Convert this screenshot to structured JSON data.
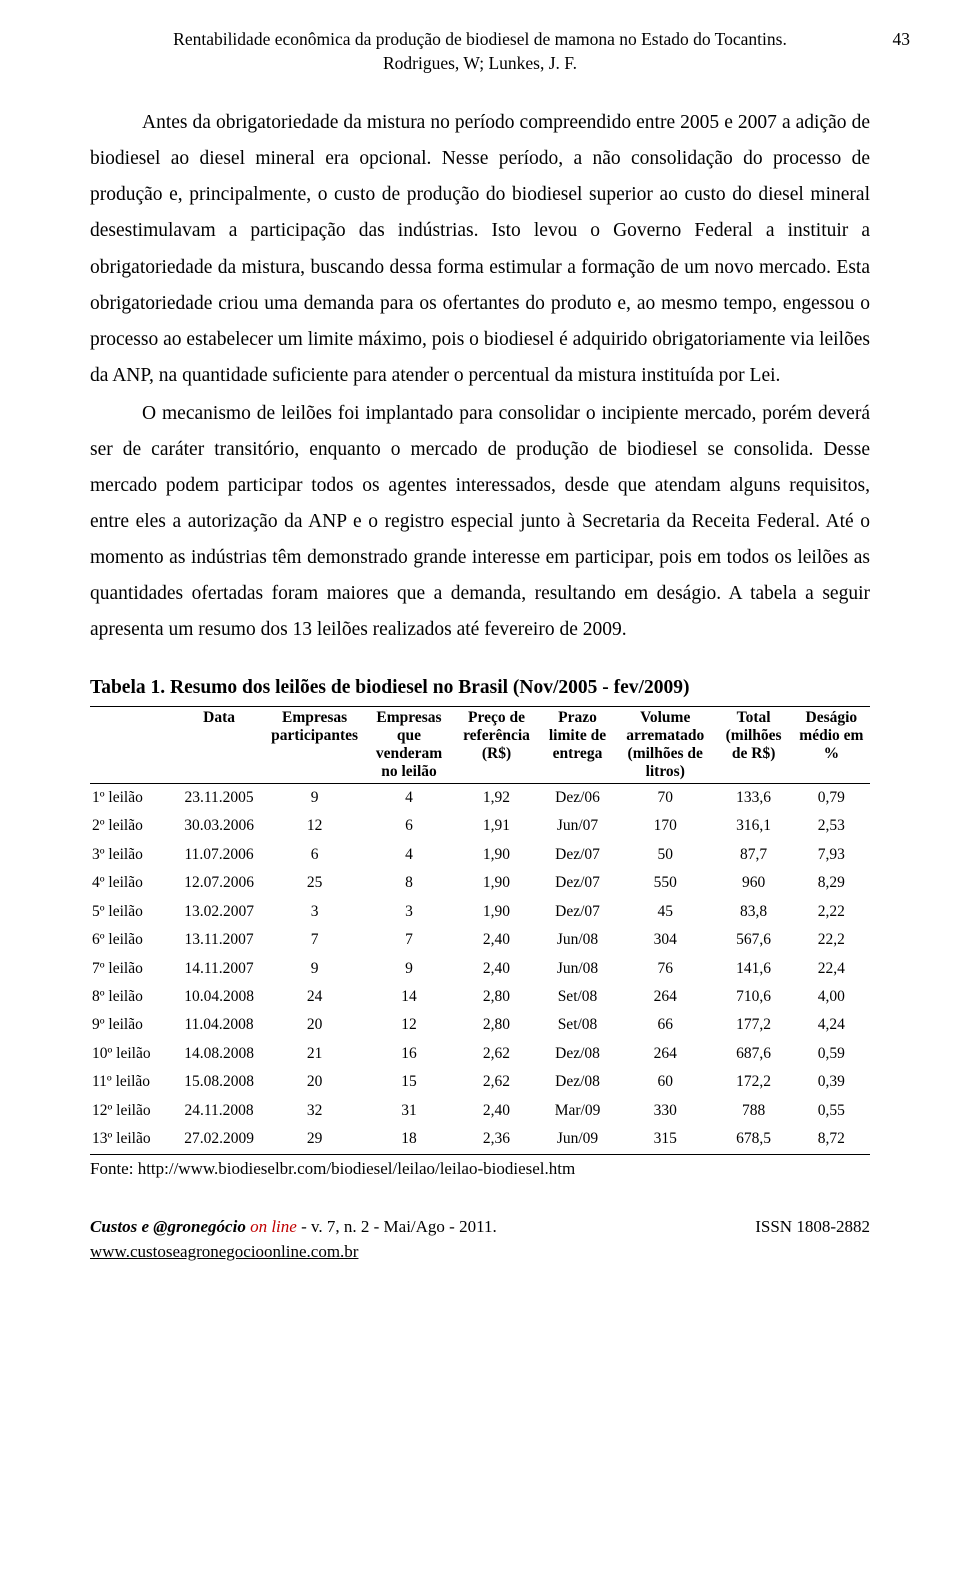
{
  "header": {
    "title_line1": "Rentabilidade econômica da produção de biodiesel de mamona no Estado do Tocantins.",
    "title_line2": "Rodrigues, W; Lunkes, J. F.",
    "page_number": "43"
  },
  "paragraph1": "Antes da obrigatoriedade da mistura no período compreendido entre 2005 e 2007 a adição de biodiesel ao diesel mineral era opcional. Nesse período, a não consolidação do processo de produção e, principalmente, o custo de produção do biodiesel superior ao custo do diesel mineral desestimulavam a participação das indústrias. Isto levou o Governo Federal a instituir a obrigatoriedade da mistura, buscando dessa forma estimular a formação de um novo mercado. Esta obrigatoriedade criou uma demanda para os ofertantes do produto e, ao mesmo tempo, engessou o processo ao estabelecer um limite máximo, pois o biodiesel é adquirido obrigatoriamente via leilões da ANP, na quantidade suficiente para atender o percentual da mistura instituída por Lei.",
  "paragraph2": "O mecanismo de leilões foi implantado para consolidar o incipiente mercado, porém deverá ser de caráter transitório, enquanto o mercado de produção de biodiesel se consolida. Desse mercado podem participar todos os agentes interessados, desde que atendam alguns requisitos, entre eles a autorização da ANP e o registro especial junto à Secretaria da Receita Federal. Até o momento as indústrias têm demonstrado grande interesse em participar, pois em todos os leilões as quantidades ofertadas foram maiores que a demanda, resultando em deságio. A tabela a seguir apresenta um resumo dos 13 leilões realizados até fevereiro de 2009.",
  "table": {
    "title": "Tabela 1. Resumo dos leilões de biodiesel no Brasil (Nov/2005 - fev/2009)",
    "columns": [
      "",
      "Data",
      "Empresas participantes",
      "Empresas que venderam no leilão",
      "Preço de referência (R$)",
      "Prazo limite de entrega",
      "Volume arrematado (milhões de litros)",
      "Total (milhões de R$)",
      "Deságio médio em %"
    ],
    "rows": [
      [
        "1º leilão",
        "23.11.2005",
        "9",
        "4",
        "1,92",
        "Dez/06",
        "70",
        "133,6",
        "0,79"
      ],
      [
        "2º leilão",
        "30.03.2006",
        "12",
        "6",
        "1,91",
        "Jun/07",
        "170",
        "316,1",
        "2,53"
      ],
      [
        "3º leilão",
        "11.07.2006",
        "6",
        "4",
        "1,90",
        "Dez/07",
        "50",
        "87,7",
        "7,93"
      ],
      [
        "4º leilão",
        "12.07.2006",
        "25",
        "8",
        "1,90",
        "Dez/07",
        "550",
        "960",
        "8,29"
      ],
      [
        "5º leilão",
        "13.02.2007",
        "3",
        "3",
        "1,90",
        "Dez/07",
        "45",
        "83,8",
        "2,22"
      ],
      [
        "6º leilão",
        "13.11.2007",
        "7",
        "7",
        "2,40",
        "Jun/08",
        "304",
        "567,6",
        "22,2"
      ],
      [
        "7º leilão",
        "14.11.2007",
        "9",
        "9",
        "2,40",
        "Jun/08",
        "76",
        "141,6",
        "22,4"
      ],
      [
        "8º leilão",
        "10.04.2008",
        "24",
        "14",
        "2,80",
        "Set/08",
        "264",
        "710,6",
        "4,00"
      ],
      [
        "9º leilão",
        "11.04.2008",
        "20",
        "12",
        "2,80",
        "Set/08",
        "66",
        "177,2",
        "4,24"
      ],
      [
        "10º leilão",
        "14.08.2008",
        "21",
        "16",
        "2,62",
        "Dez/08",
        "264",
        "687,6",
        "0,59"
      ],
      [
        "11º leilão",
        "15.08.2008",
        "20",
        "15",
        "2,62",
        "Dez/08",
        "60",
        "172,2",
        "0,39"
      ],
      [
        "12º leilão",
        "24.11.2008",
        "32",
        "31",
        "2,40",
        "Mar/09",
        "330",
        "788",
        "0,55"
      ],
      [
        "13º leilão",
        "27.02.2009",
        "29",
        "18",
        "2,36",
        "Jun/09",
        "315",
        "678,5",
        "8,72"
      ]
    ],
    "fonte": "Fonte: http://www.biodieselbr.com/biodiesel/leilao/leilao-biodiesel.htm"
  },
  "footer": {
    "journal": "Custos e @gronegócio",
    "online": " on line",
    "rest": " - v. 7, n. 2 - Mai/Ago - 2011.",
    "issn": "ISSN 1808-2882",
    "url": "www.custoseagronegocioonline.com.br"
  }
}
